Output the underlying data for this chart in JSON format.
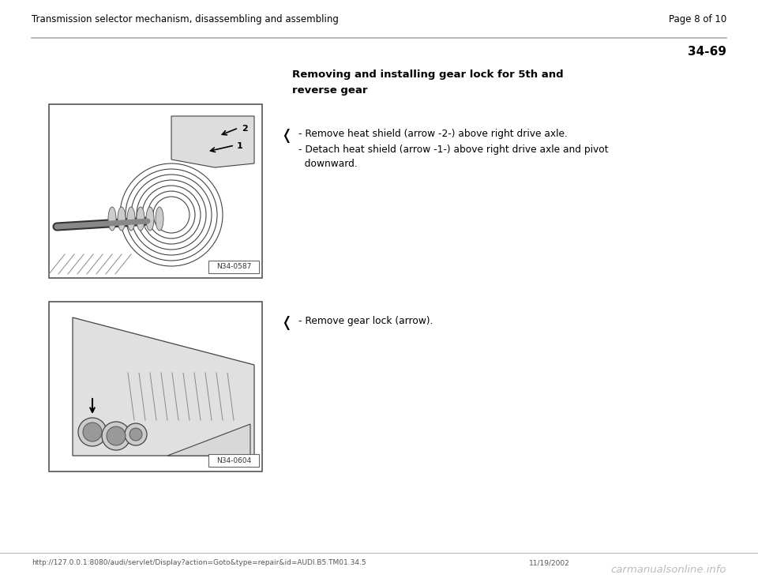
{
  "page_title_left": "Transmission selector mechanism, disassembling and assembling",
  "page_title_right": "Page 8 of 10",
  "section_number": "34-69",
  "section_heading_line1": "Removing and installing gear lock for 5th and",
  "section_heading_line2": "reverse gear",
  "bullet_points_1_a": "- Remove heat shield (arrow -2-) above right drive axle.",
  "bullet_points_1_b": "- Detach heat shield (arrow -1-) above right drive axle and pivot",
  "bullet_points_1_b2": "  downward.",
  "bullet_points_2_a": "- Remove gear lock (arrow).",
  "image1_label": "N34-0587",
  "image2_label": "N34-0604",
  "footer_url": "http://127.0.0.1:8080/audi/servlet/Display?action=Goto&type=repair&id=AUDI.B5.TM01.34.5",
  "footer_date": "11/19/2002",
  "footer_watermark": "carmanualsonline.info",
  "bg": "#ffffff",
  "tc": "#000000",
  "header_line_color": "#aaaaaa",
  "img_border": "#555555",
  "footer_line_color": "#bbbbbb"
}
